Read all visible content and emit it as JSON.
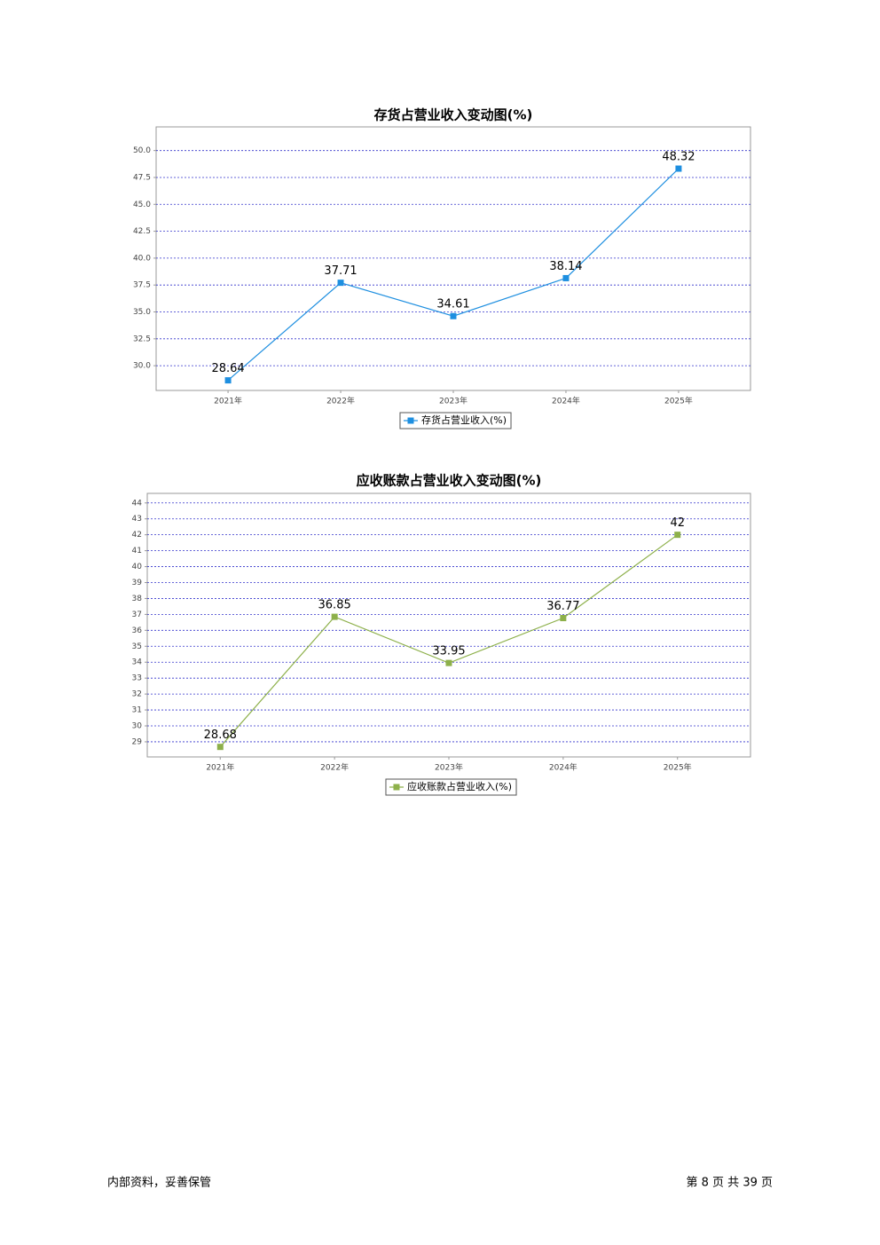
{
  "chart_data": [
    {
      "type": "line",
      "title": "存货占营业收入变动图(%)",
      "categories": [
        "2021年",
        "2022年",
        "2023年",
        "2024年",
        "2025年"
      ],
      "series": [
        {
          "name": "存货占营业收入(%)",
          "color": "#1e8fe0",
          "values": [
            28.64,
            37.71,
            34.61,
            38.14,
            48.32
          ]
        }
      ],
      "ylim": [
        27.7,
        52.2
      ],
      "yticks": [
        {
          "value": 30,
          "label": "30.0"
        },
        {
          "value": 32.5,
          "label": "32.5"
        },
        {
          "value": 35,
          "label": "35.0"
        },
        {
          "value": 37.5,
          "label": "37.5"
        },
        {
          "value": 40,
          "label": "40.0"
        },
        {
          "value": 42.5,
          "label": "42.5"
        },
        {
          "value": 45,
          "label": "45.0"
        },
        {
          "value": 47.5,
          "label": "47.5"
        },
        {
          "value": 50,
          "label": "50.0"
        }
      ],
      "grid": true,
      "legend": "bottom"
    },
    {
      "type": "line",
      "title": "应收账款占营业收入变动图(%)",
      "categories": [
        "2021年",
        "2022年",
        "2023年",
        "2024年",
        "2025年"
      ],
      "series": [
        {
          "name": "应收账款占营业收入(%)",
          "color": "#8db04a",
          "values": [
            28.68,
            36.85,
            33.95,
            36.77,
            42
          ]
        }
      ],
      "ylim": [
        28.05,
        44.6
      ],
      "yticks": [
        29,
        30,
        31,
        32,
        33,
        34,
        35,
        36,
        37,
        38,
        39,
        40,
        41,
        42,
        43,
        44
      ],
      "grid": true,
      "legend": "bottom"
    }
  ],
  "footer": {
    "left": "内部资料，妥善保管",
    "right": "第 8 页  共 39 页"
  }
}
